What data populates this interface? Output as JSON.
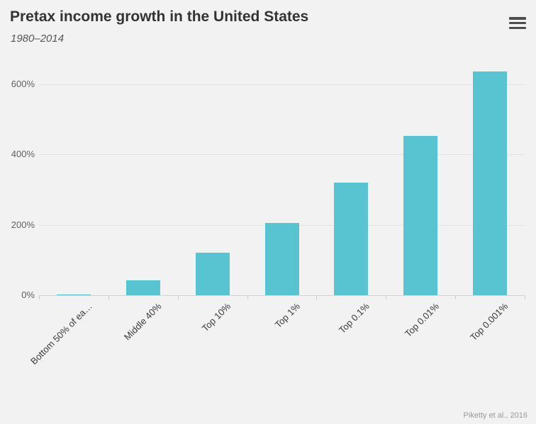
{
  "chart_data": {
    "type": "bar",
    "title": "Pretax income growth in the United States",
    "subtitle": "1980–2014",
    "categories": [
      "Bottom 50% of ea…",
      "Middle 40%",
      "Top 10%",
      "Top 1%",
      "Top 0.1%",
      "Top 0.01%",
      "Top 0.001%"
    ],
    "values": [
      1,
      42,
      120,
      205,
      320,
      453,
      636
    ],
    "xlabel": "",
    "ylabel": "",
    "ylim": [
      0,
      650
    ],
    "yticks": [
      0,
      200,
      400,
      600
    ],
    "ytick_labels": [
      "0%",
      "200%",
      "400%",
      "600%"
    ],
    "grid": true,
    "legend": "none",
    "bar_color": "#58c4d2",
    "background_color": "#f2f2f2",
    "credit": "Piketty et al., 2016"
  },
  "icons": {
    "menu": "hamburger-icon"
  }
}
